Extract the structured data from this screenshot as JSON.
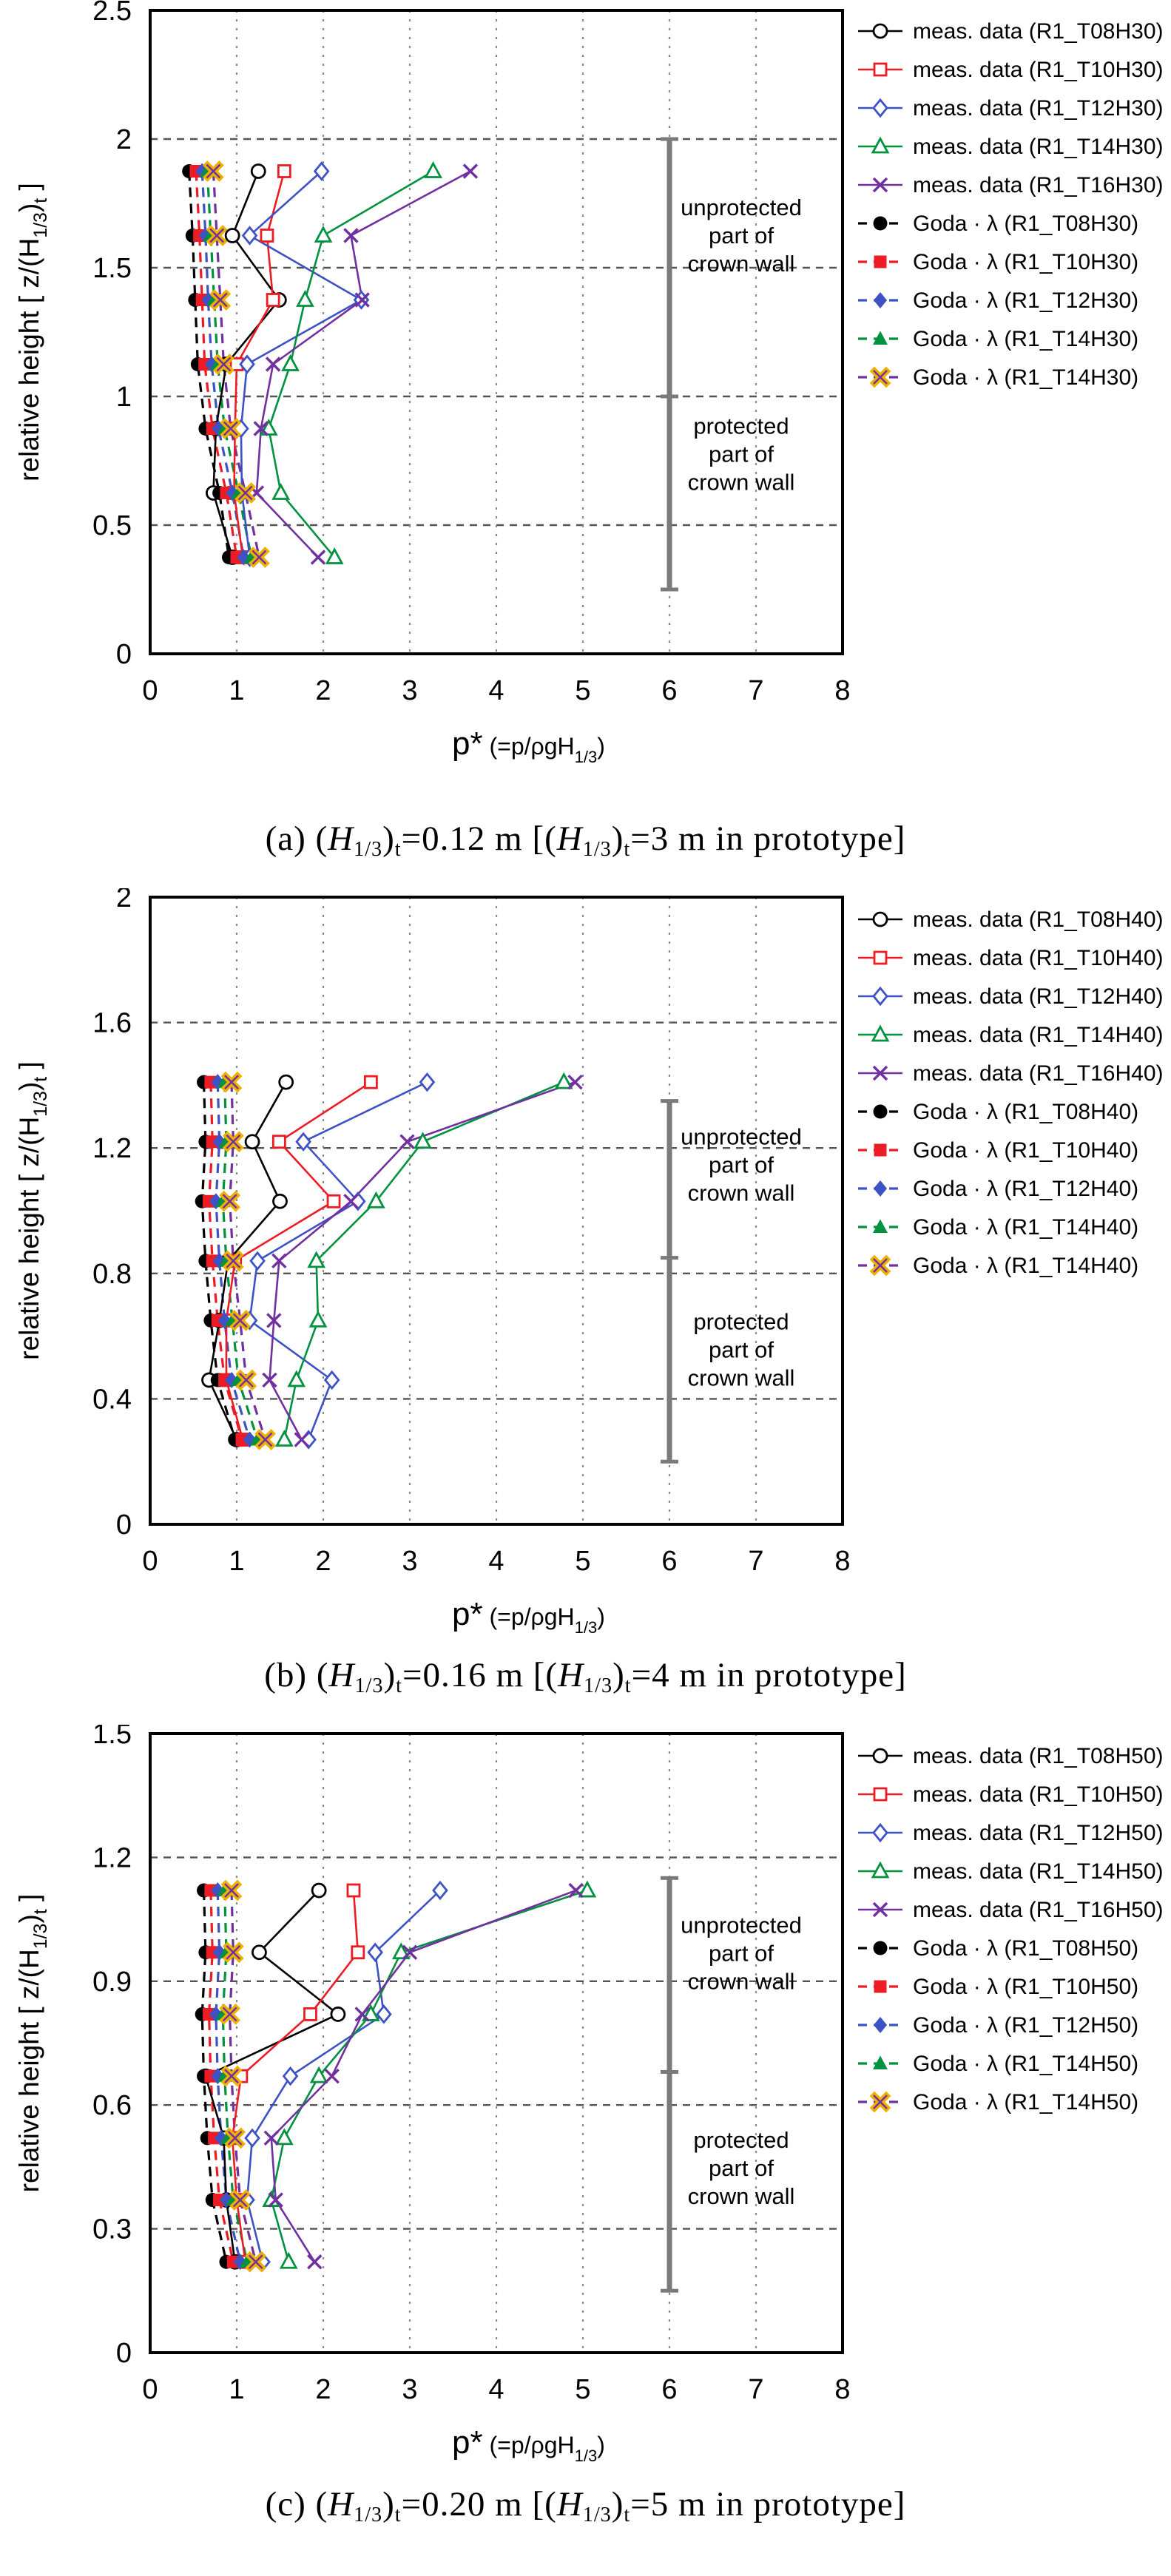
{
  "page": {
    "background": "#ffffff"
  },
  "shared": {
    "x_axis_ticks": [
      "0",
      "1",
      "2",
      "3",
      "4",
      "5",
      "6",
      "7",
      "8"
    ],
    "x_axis_title_plain": "p* (=p/ρgH1/3)",
    "x_axis_title_parts": [
      [
        "b",
        "p*"
      ],
      [
        "n",
        " (=p/ρgH"
      ],
      [
        "s",
        "1/3"
      ],
      [
        "n",
        ")"
      ]
    ],
    "y_axis_title_plain": "relative height [ z/(H1/3)t ]",
    "y_axis_title_parts": [
      [
        "n",
        "relative height [ z/(H"
      ],
      [
        "s",
        "1/3"
      ],
      [
        "n",
        ")"
      ],
      [
        "s",
        "t"
      ],
      [
        "n",
        " ]"
      ]
    ],
    "annotation_upper_lines": [
      "unprotected",
      "part of",
      "crown wall"
    ],
    "annotation_lower_lines": [
      "protected",
      "part of",
      "crown wall"
    ],
    "colors": {
      "black": "#000000",
      "red": "#ed1c24",
      "blue": "#3d52c5",
      "green": "#00923f",
      "purple": "#7030a0",
      "gold": "#f0b000",
      "bar_gray": "#7a7a7a",
      "grid_h": "#555555",
      "grid_v": "#8a8a8a"
    }
  },
  "chart_data": [
    {
      "type": "line",
      "id": "a",
      "caption_plain": "(a) (H1/3)t=0.12 m [(H1/3)t=3 m in prototype]",
      "caption_parts": [
        [
          "n",
          "(a) ("
        ],
        [
          "i",
          "H"
        ],
        [
          "s",
          "1/3"
        ],
        [
          "n",
          ")"
        ],
        [
          "s",
          "t"
        ],
        [
          "n",
          "=0.12 m [("
        ],
        [
          "i",
          "H"
        ],
        [
          "s",
          "1/3"
        ],
        [
          "n",
          ")"
        ],
        [
          "s",
          "t"
        ],
        [
          "n",
          "=3 m in prototype]"
        ]
      ],
      "ylim": [
        0,
        2.5
      ],
      "xlim": [
        0,
        8
      ],
      "yticks": [
        "0",
        "0.5",
        "1",
        "1.5",
        "2",
        "2.5"
      ],
      "rows_y": [
        1.875,
        1.625,
        1.375,
        1.125,
        0.875,
        0.625,
        0.375
      ],
      "bar": {
        "x": 6,
        "top": 2.0,
        "bottom": 0.25,
        "divider": 1.0
      },
      "series": [
        {
          "label": "meas. data (R1_T08H30)",
          "group": "meas",
          "marker": "o-circle",
          "color": "#000000",
          "values": [
            1.25,
            0.95,
            1.49,
            0.88,
            0.76,
            0.73,
            0.95
          ]
        },
        {
          "label": "meas. data (R1_T10H30)",
          "group": "meas",
          "marker": "o-square",
          "color": "#ed1c24",
          "values": [
            1.55,
            1.35,
            1.42,
            1.0,
            0.98,
            0.97,
            1.07
          ]
        },
        {
          "label": "meas. data (R1_T12H30)",
          "group": "meas",
          "marker": "o-diamond",
          "color": "#3d52c5",
          "values": [
            1.98,
            1.15,
            2.44,
            1.12,
            1.05,
            1.06,
            1.15
          ]
        },
        {
          "label": "meas. data (R1_T14H30)",
          "group": "meas",
          "marker": "o-triangle",
          "color": "#00923f",
          "values": [
            3.27,
            2.0,
            1.79,
            1.62,
            1.37,
            1.51,
            2.13
          ]
        },
        {
          "label": "meas. data (R1_T16H30)",
          "group": "meas",
          "marker": "x",
          "color": "#7030a0",
          "values": [
            3.7,
            2.32,
            2.45,
            1.42,
            1.28,
            1.23,
            1.94
          ]
        },
        {
          "label": "Goda · λ (R1_T08H30)",
          "group": "goda",
          "marker": "f-circle",
          "color": "#000000",
          "values": [
            0.45,
            0.49,
            0.52,
            0.55,
            0.64,
            0.8,
            0.91
          ]
        },
        {
          "label": "Goda · λ (R1_T10H30)",
          "group": "goda",
          "marker": "f-square",
          "color": "#ed1c24",
          "values": [
            0.53,
            0.57,
            0.6,
            0.63,
            0.72,
            0.88,
            1.0
          ]
        },
        {
          "label": "Goda · λ (R1_T12H30)",
          "group": "goda",
          "marker": "f-diamond",
          "color": "#3d52c5",
          "values": [
            0.6,
            0.64,
            0.67,
            0.71,
            0.79,
            0.95,
            1.08
          ]
        },
        {
          "label": "Goda · λ (R1_T14H30)",
          "group": "goda",
          "marker": "f-triangle",
          "color": "#00923f",
          "values": [
            0.66,
            0.7,
            0.74,
            0.78,
            0.86,
            1.02,
            1.17
          ]
        },
        {
          "label": "Goda · λ (R1_T14H30)",
          "group": "goda",
          "marker": "gold-x",
          "color": "#7030a0",
          "values": [
            0.73,
            0.77,
            0.81,
            0.85,
            0.93,
            1.1,
            1.26
          ]
        }
      ]
    },
    {
      "type": "line",
      "id": "b",
      "caption_plain": "(b) (H1/3)t=0.16 m [(H1/3)t=4 m in prototype]",
      "caption_parts": [
        [
          "n",
          "(b) ("
        ],
        [
          "i",
          "H"
        ],
        [
          "s",
          "1/3"
        ],
        [
          "n",
          ")"
        ],
        [
          "s",
          "t"
        ],
        [
          "n",
          "=0.16 m [("
        ],
        [
          "i",
          "H"
        ],
        [
          "s",
          "1/3"
        ],
        [
          "n",
          ")"
        ],
        [
          "s",
          "t"
        ],
        [
          "n",
          "=4 m in prototype]"
        ]
      ],
      "ylim": [
        0,
        2
      ],
      "xlim": [
        0,
        8
      ],
      "yticks": [
        "0",
        "0.4",
        "0.8",
        "1.2",
        "1.6",
        "2"
      ],
      "rows_y": [
        1.41,
        1.22,
        1.03,
        0.84,
        0.65,
        0.46,
        0.27
      ],
      "bar": {
        "x": 6,
        "top": 1.35,
        "bottom": 0.2,
        "divider": 0.85
      },
      "series": [
        {
          "label": "meas. data (R1_T08H40)",
          "group": "meas",
          "marker": "o-circle",
          "color": "#000000",
          "values": [
            1.57,
            1.18,
            1.5,
            0.9,
            0.8,
            0.68,
            1.0
          ]
        },
        {
          "label": "meas. data (R1_T10H40)",
          "group": "meas",
          "marker": "o-square",
          "color": "#ed1c24",
          "values": [
            2.55,
            1.49,
            2.12,
            0.98,
            0.88,
            0.88,
            1.07
          ]
        },
        {
          "label": "meas. data (R1_T12H40)",
          "group": "meas",
          "marker": "o-diamond",
          "color": "#3d52c5",
          "values": [
            3.2,
            1.77,
            2.4,
            1.24,
            1.15,
            2.1,
            1.83
          ]
        },
        {
          "label": "meas. data (R1_T14H40)",
          "group": "meas",
          "marker": "o-triangle",
          "color": "#00923f",
          "values": [
            4.78,
            3.15,
            2.61,
            1.92,
            1.94,
            1.69,
            1.55
          ]
        },
        {
          "label": "meas. data (R1_T16H40)",
          "group": "meas",
          "marker": "x",
          "color": "#7030a0",
          "values": [
            4.91,
            2.97,
            2.32,
            1.49,
            1.43,
            1.38,
            1.75
          ]
        },
        {
          "label": "Goda · λ (R1_T08H40)",
          "group": "goda",
          "marker": "f-circle",
          "color": "#000000",
          "values": [
            0.62,
            0.64,
            0.6,
            0.64,
            0.7,
            0.78,
            0.98
          ]
        },
        {
          "label": "Goda · λ (R1_T10H40)",
          "group": "goda",
          "marker": "f-square",
          "color": "#ed1c24",
          "values": [
            0.7,
            0.72,
            0.68,
            0.72,
            0.78,
            0.86,
            1.06
          ]
        },
        {
          "label": "Goda · λ (R1_T12H40)",
          "group": "goda",
          "marker": "f-diamond",
          "color": "#3d52c5",
          "values": [
            0.78,
            0.8,
            0.76,
            0.8,
            0.86,
            0.94,
            1.15
          ]
        },
        {
          "label": "Goda · λ (R1_T14H40)",
          "group": "goda",
          "marker": "f-triangle",
          "color": "#00923f",
          "values": [
            0.86,
            0.88,
            0.84,
            0.88,
            0.95,
            1.02,
            1.24
          ]
        },
        {
          "label": "Goda · λ (R1_T14H40)",
          "group": "goda",
          "marker": "gold-x",
          "color": "#7030a0",
          "values": [
            0.94,
            0.96,
            0.92,
            0.96,
            1.04,
            1.11,
            1.33
          ]
        }
      ]
    },
    {
      "type": "line",
      "id": "c",
      "caption_plain": "(c) (H1/3)t=0.20 m [(H1/3)t=5 m in prototype]",
      "caption_parts": [
        [
          "n",
          "(c) ("
        ],
        [
          "i",
          "H"
        ],
        [
          "s",
          "1/3"
        ],
        [
          "n",
          ")"
        ],
        [
          "s",
          "t"
        ],
        [
          "n",
          "=0.20 m [("
        ],
        [
          "i",
          "H"
        ],
        [
          "s",
          "1/3"
        ],
        [
          "n",
          ")"
        ],
        [
          "s",
          "t"
        ],
        [
          "n",
          "=5 m in prototype]"
        ]
      ],
      "ylim": [
        0,
        1.5
      ],
      "xlim": [
        0,
        8
      ],
      "yticks": [
        "0",
        "0.3",
        "0.6",
        "0.9",
        "1.2",
        "1.5"
      ],
      "rows_y": [
        1.12,
        0.97,
        0.82,
        0.67,
        0.52,
        0.37,
        0.22
      ],
      "bar": {
        "x": 6,
        "top": 1.15,
        "bottom": 0.15,
        "divider": 0.68
      },
      "series": [
        {
          "label": "meas. data (R1_T08H50)",
          "group": "meas",
          "marker": "o-circle",
          "color": "#000000",
          "values": [
            1.95,
            1.26,
            2.17,
            0.64,
            0.85,
            0.88,
            0.98
          ]
        },
        {
          "label": "meas. data (R1_T10H50)",
          "group": "meas",
          "marker": "o-square",
          "color": "#ed1c24",
          "values": [
            2.35,
            2.4,
            1.85,
            1.05,
            0.95,
            1.0,
            1.1
          ]
        },
        {
          "label": "meas. data (R1_T12H50)",
          "group": "meas",
          "marker": "o-diamond",
          "color": "#3d52c5",
          "values": [
            3.35,
            2.6,
            2.7,
            1.62,
            1.18,
            1.12,
            1.3
          ]
        },
        {
          "label": "meas. data (R1_T14H50)",
          "group": "meas",
          "marker": "o-triangle",
          "color": "#00923f",
          "values": [
            5.05,
            2.9,
            2.55,
            1.95,
            1.55,
            1.4,
            1.6
          ]
        },
        {
          "label": "meas. data (R1_T16H50)",
          "group": "meas",
          "marker": "x",
          "color": "#7030a0",
          "values": [
            4.92,
            3.0,
            2.45,
            2.1,
            1.4,
            1.45,
            1.9
          ]
        },
        {
          "label": "Goda · λ (R1_T08H50)",
          "group": "goda",
          "marker": "f-circle",
          "color": "#000000",
          "values": [
            0.62,
            0.64,
            0.6,
            0.62,
            0.66,
            0.72,
            0.88
          ]
        },
        {
          "label": "Goda · λ (R1_T10H50)",
          "group": "goda",
          "marker": "f-square",
          "color": "#ed1c24",
          "values": [
            0.7,
            0.72,
            0.68,
            0.7,
            0.74,
            0.8,
            0.96
          ]
        },
        {
          "label": "Goda · λ (R1_T12H50)",
          "group": "goda",
          "marker": "f-diamond",
          "color": "#3d52c5",
          "values": [
            0.78,
            0.8,
            0.76,
            0.78,
            0.82,
            0.88,
            1.04
          ]
        },
        {
          "label": "Goda · λ (R1_T14H50)",
          "group": "goda",
          "marker": "f-triangle",
          "color": "#00923f",
          "values": [
            0.86,
            0.88,
            0.84,
            0.86,
            0.9,
            0.96,
            1.12
          ]
        },
        {
          "label": "Goda · λ (R1_T14H50)",
          "group": "goda",
          "marker": "gold-x",
          "color": "#7030a0",
          "values": [
            0.94,
            0.96,
            0.92,
            0.94,
            0.98,
            1.04,
            1.22
          ]
        }
      ]
    }
  ]
}
